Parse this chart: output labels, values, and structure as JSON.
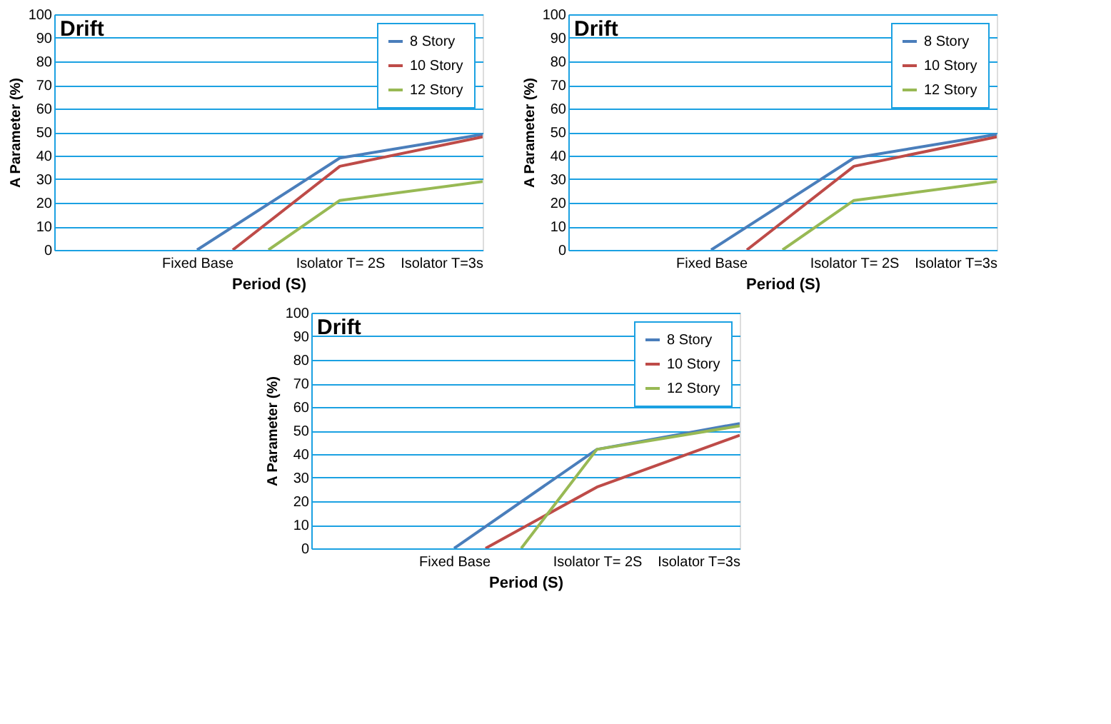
{
  "chart_data": [
    {
      "type": "line",
      "title": "Drift",
      "xlabel": "Period (S)",
      "ylabel": "A Parameter (%)",
      "xlim": [
        0,
        3
      ],
      "xticks": [
        {
          "value": 1,
          "label": "Fixed Base"
        },
        {
          "value": 2,
          "label": "Isolator T= 2S"
        },
        {
          "value": 3,
          "label": "Isolator T=3s"
        }
      ],
      "ylim": [
        0,
        100
      ],
      "yticks": [
        0,
        10,
        20,
        30,
        40,
        50,
        60,
        70,
        80,
        90,
        100
      ],
      "grid": "y",
      "legend": "top right",
      "line_style": "solid",
      "series": [
        {
          "name": "8 Story",
          "color": "#4a7ebb",
          "x": [
            1,
            2,
            3
          ],
          "values": [
            0,
            39,
            49
          ]
        },
        {
          "name": "10 Story",
          "color": "#be4b48",
          "x": [
            1.25,
            2,
            3
          ],
          "values": [
            0,
            35.5,
            48
          ]
        },
        {
          "name": "12 Story",
          "color": "#98b954",
          "x": [
            1.5,
            2,
            3
          ],
          "values": [
            0,
            21,
            29
          ]
        }
      ]
    },
    {
      "type": "line",
      "title": "Drift",
      "xlabel": "Period (S)",
      "ylabel": "A Parameter (%)",
      "xlim": [
        0,
        3
      ],
      "xticks": [
        {
          "value": 1,
          "label": "Fixed Base"
        },
        {
          "value": 2,
          "label": "Isolator T= 2S"
        },
        {
          "value": 3,
          "label": "Isolator T=3s"
        }
      ],
      "ylim": [
        0,
        100
      ],
      "yticks": [
        0,
        10,
        20,
        30,
        40,
        50,
        60,
        70,
        80,
        90,
        100
      ],
      "grid": "y",
      "legend": "top right",
      "line_style": "solid",
      "series": [
        {
          "name": "8 Story",
          "color": "#4a7ebb",
          "x": [
            1,
            2,
            3
          ],
          "values": [
            0,
            39,
            49
          ]
        },
        {
          "name": "10 Story",
          "color": "#be4b48",
          "x": [
            1.25,
            2,
            3
          ],
          "values": [
            0,
            35.5,
            48
          ]
        },
        {
          "name": "12 Story",
          "color": "#98b954",
          "x": [
            1.5,
            2,
            3
          ],
          "values": [
            0,
            21,
            29
          ]
        }
      ]
    },
    {
      "type": "line",
      "title": "Drift",
      "xlabel": "Period (S)",
      "ylabel": "A Parameter (%)",
      "xlim": [
        0,
        3
      ],
      "xticks": [
        {
          "value": 1,
          "label": "Fixed Base"
        },
        {
          "value": 2,
          "label": "Isolator T= 2S"
        },
        {
          "value": 3,
          "label": "Isolator T=3s"
        }
      ],
      "ylim": [
        0,
        100
      ],
      "yticks": [
        0,
        10,
        20,
        30,
        40,
        50,
        60,
        70,
        80,
        90,
        100
      ],
      "grid": "y",
      "legend": "top right",
      "line_style": "solid",
      "series": [
        {
          "name": "8 Story",
          "color": "#4a7ebb",
          "x": [
            1,
            2,
            3
          ],
          "values": [
            0,
            42,
            53
          ]
        },
        {
          "name": "10 Story",
          "color": "#be4b48",
          "x": [
            1.22,
            2,
            3
          ],
          "values": [
            0,
            26,
            48
          ]
        },
        {
          "name": "12 Story",
          "color": "#98b954",
          "x": [
            1.47,
            2,
            3
          ],
          "values": [
            0,
            42,
            52
          ]
        }
      ]
    }
  ]
}
